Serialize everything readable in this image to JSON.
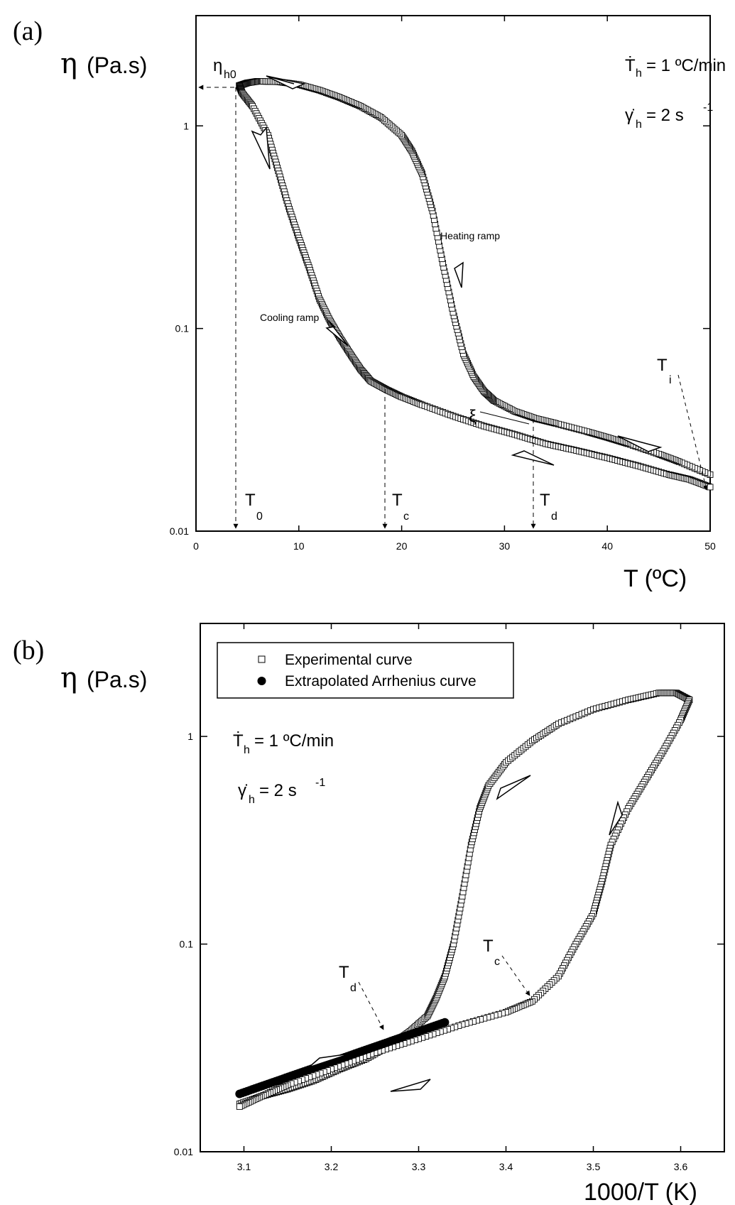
{
  "chart_data": [
    {
      "panel": "(a)",
      "type": "scatter",
      "ylabel_symbol": "η",
      "ylabel_unit": "(Pa.s)",
      "xlabel": "T (ºC)",
      "xlim": [
        0,
        50
      ],
      "ylim": [
        0.01,
        3.5
      ],
      "yscale": "log",
      "xticks": [
        0,
        10,
        20,
        30,
        40,
        50
      ],
      "yticks": [
        {
          "v": 0.01,
          "label": "0.01"
        },
        {
          "v": 0.1,
          "label": "0.1"
        },
        {
          "v": 1,
          "label": "1"
        }
      ],
      "annotations": {
        "rate": "Ṫ",
        "rate_sub": "h",
        "rate_value": "= 1 ºC/min",
        "shear": "γ̇",
        "shear_sub": "h",
        "shear_value": "= 2 s",
        "shear_exp": "-1",
        "eta_h0": "η",
        "eta_h0_sub": "h0",
        "heating_label": "Heating ramp",
        "cooling_label": "Cooling ramp",
        "T0": "T",
        "T0_sub": "0",
        "Tc": "T",
        "Tc_sub": "c",
        "Td": "T",
        "Td_sub": "d",
        "Ti": "T",
        "Ti_sub": "i",
        "xi": "ξ"
      },
      "markers": {
        "T0": 4,
        "Tc": 18.5,
        "Td": 33,
        "eta_h0": 1.6
      },
      "series": [
        {
          "marker": "open-square",
          "points": [
            [
              50,
              0.019
            ],
            [
              47,
              0.022
            ],
            [
              45,
              0.024
            ],
            [
              42,
              0.027
            ],
            [
              40,
              0.029
            ],
            [
              38,
              0.031
            ],
            [
              35,
              0.034
            ],
            [
              33,
              0.036
            ],
            [
              31,
              0.039
            ],
            [
              29,
              0.044
            ],
            [
              28,
              0.049
            ],
            [
              27,
              0.058
            ],
            [
              26,
              0.075
            ],
            [
              25,
              0.12
            ],
            [
              24,
              0.21
            ],
            [
              23,
              0.38
            ],
            [
              22,
              0.58
            ],
            [
              21,
              0.75
            ],
            [
              20,
              0.9
            ],
            [
              18,
              1.1
            ],
            [
              16,
              1.25
            ],
            [
              14,
              1.38
            ],
            [
              12,
              1.5
            ],
            [
              10,
              1.6
            ],
            [
              8,
              1.65
            ],
            [
              6,
              1.66
            ],
            [
              5,
              1.63
            ],
            [
              4.2,
              1.58
            ]
          ]
        },
        {
          "marker": "open-square",
          "points": [
            [
              4.2,
              1.58
            ],
            [
              4.5,
              1.45
            ],
            [
              5.5,
              1.25
            ],
            [
              7,
              0.9
            ],
            [
              8,
              0.6
            ],
            [
              9,
              0.4
            ],
            [
              10,
              0.28
            ],
            [
              11,
              0.2
            ],
            [
              12,
              0.14
            ],
            [
              13,
              0.11
            ],
            [
              14,
              0.09
            ],
            [
              15,
              0.075
            ],
            [
              16,
              0.063
            ],
            [
              17,
              0.055
            ],
            [
              18.5,
              0.05
            ],
            [
              20,
              0.046
            ],
            [
              22,
              0.042
            ],
            [
              25,
              0.037
            ],
            [
              28,
              0.033
            ],
            [
              31,
              0.03
            ],
            [
              34,
              0.027
            ],
            [
              37,
              0.025
            ],
            [
              40,
              0.023
            ],
            [
              43,
              0.021
            ],
            [
              46,
              0.019
            ],
            [
              48,
              0.018
            ],
            [
              50,
              0.0165
            ]
          ]
        }
      ]
    },
    {
      "panel": "(b)",
      "type": "scatter",
      "ylabel_symbol": "η",
      "ylabel_unit": "(Pa.s)",
      "xlabel": "1000/T (K)",
      "xlim": [
        3.05,
        3.65
      ],
      "ylim": [
        0.01,
        3.5
      ],
      "yscale": "log",
      "xticks": [
        3.1,
        3.2,
        3.3,
        3.4,
        3.5,
        3.6
      ],
      "yticks": [
        {
          "v": 0.01,
          "label": "0.01"
        },
        {
          "v": 0.1,
          "label": "0.1"
        },
        {
          "v": 1,
          "label": "1"
        }
      ],
      "legend": [
        {
          "marker": "open-square",
          "label": "Experimental curve"
        },
        {
          "marker": "filled-circle",
          "label": "Extrapolated Arrhenius curve"
        }
      ],
      "annotations": {
        "rate": "Ṫ",
        "rate_sub": "h",
        "rate_value": "= 1 ºC/min",
        "shear": "γ̇",
        "shear_sub": "h",
        "shear_value": "= 2 s",
        "shear_exp": "-1",
        "Tc": "T",
        "Tc_sub": "c",
        "Td": "T",
        "Td_sub": "d"
      },
      "series": [
        {
          "name": "Experimental curve",
          "marker": "open-square",
          "points": [
            [
              3.095,
              0.017
            ],
            [
              3.12,
              0.0185
            ],
            [
              3.15,
              0.02
            ],
            [
              3.18,
              0.022
            ],
            [
              3.21,
              0.025
            ],
            [
              3.24,
              0.028
            ],
            [
              3.27,
              0.033
            ],
            [
              3.29,
              0.038
            ],
            [
              3.31,
              0.045
            ],
            [
              3.32,
              0.055
            ],
            [
              3.33,
              0.07
            ],
            [
              3.34,
              0.1
            ],
            [
              3.35,
              0.17
            ],
            [
              3.36,
              0.3
            ],
            [
              3.37,
              0.45
            ],
            [
              3.38,
              0.58
            ],
            [
              3.4,
              0.75
            ],
            [
              3.43,
              0.95
            ],
            [
              3.46,
              1.15
            ],
            [
              3.5,
              1.35
            ],
            [
              3.54,
              1.5
            ],
            [
              3.575,
              1.62
            ],
            [
              3.595,
              1.62
            ],
            [
              3.61,
              1.5
            ]
          ]
        },
        {
          "name": "Experimental curve",
          "marker": "open-square",
          "points": [
            [
              3.61,
              1.5
            ],
            [
              3.6,
              1.2
            ],
            [
              3.58,
              0.85
            ],
            [
              3.56,
              0.62
            ],
            [
              3.54,
              0.45
            ],
            [
              3.52,
              0.3
            ],
            [
              3.51,
              0.2
            ],
            [
              3.5,
              0.14
            ],
            [
              3.48,
              0.1
            ],
            [
              3.46,
              0.07
            ],
            [
              3.43,
              0.053
            ],
            [
              3.4,
              0.047
            ],
            [
              3.35,
              0.041
            ],
            [
              3.3,
              0.035
            ],
            [
              3.25,
              0.03
            ],
            [
              3.2,
              0.025
            ],
            [
              3.15,
              0.021
            ],
            [
              3.12,
              0.0185
            ],
            [
              3.095,
              0.0165
            ]
          ]
        },
        {
          "name": "Extrapolated Arrhenius curve",
          "marker": "filled-circle",
          "line": [
            [
              3.095,
              0.019
            ],
            [
              3.33,
              0.042
            ]
          ]
        }
      ]
    }
  ]
}
